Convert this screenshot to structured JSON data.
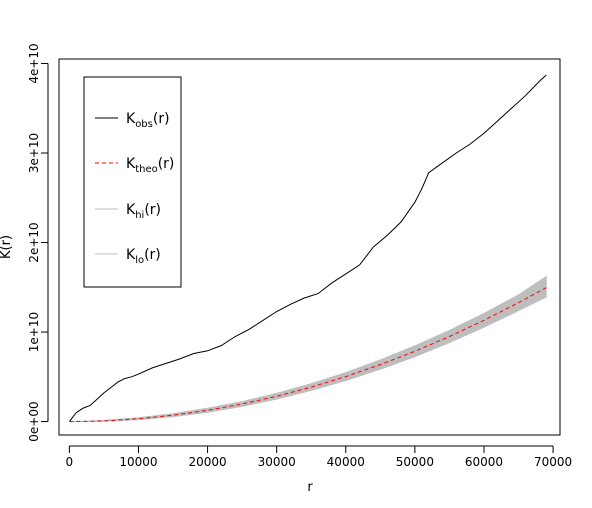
{
  "chart_data": {
    "type": "line",
    "title": "",
    "xlabel": "r",
    "ylabel": "K(r)",
    "xlim": [
      -1500,
      71000
    ],
    "ylim": [
      -1500000000,
      40500000000
    ],
    "x_ticks": [
      0,
      10000,
      20000,
      30000,
      40000,
      50000,
      60000,
      70000
    ],
    "x_tick_labels": [
      "0",
      "10000",
      "20000",
      "30000",
      "40000",
      "50000",
      "60000",
      "70000"
    ],
    "y_ticks": [
      0,
      10000000000,
      20000000000,
      30000000000,
      40000000000
    ],
    "y_tick_labels": [
      "0e+00",
      "1e+10",
      "2e+10",
      "3e+10",
      "4e+10"
    ],
    "grid": false,
    "legend_position": "top-left",
    "legend": [
      {
        "base": "K",
        "sub": "obs",
        "suffix": "(r)",
        "color": "#000000",
        "style": "solid"
      },
      {
        "base": "K",
        "sub": "theo",
        "suffix": "(r)",
        "color": "#ff0000",
        "style": "dashed"
      },
      {
        "base": "K",
        "sub": "hi",
        "suffix": "(r)",
        "color": "#bebebe",
        "style": "solid"
      },
      {
        "base": "K",
        "sub": "lo",
        "suffix": "(r)",
        "color": "#bebebe",
        "style": "solid"
      }
    ],
    "series": [
      {
        "name": "obs",
        "color": "#000000",
        "x": [
          0,
          500,
          1000,
          2000,
          3000,
          4000,
          5000,
          6000,
          7000,
          8000,
          9000,
          10000,
          12000,
          14000,
          16000,
          18000,
          20000,
          22000,
          24000,
          26000,
          28000,
          30000,
          32000,
          34000,
          36000,
          38000,
          40000,
          42000,
          44000,
          46000,
          48000,
          50000,
          51000,
          52000,
          54000,
          56000,
          58000,
          60000,
          62000,
          64000,
          66000,
          68000,
          69000
        ],
        "y": [
          0,
          500000000,
          1000000000,
          1500000000,
          1800000000,
          2500000000,
          3200000000,
          3800000000,
          4400000000,
          4800000000,
          5000000000,
          5300000000,
          6000000000,
          6500000000,
          7000000000,
          7600000000,
          7900000000,
          8500000000,
          9500000000,
          10300000000,
          11300000000,
          12300000000,
          13100000000,
          13800000000,
          14300000000,
          15500000000,
          16500000000,
          17500000000,
          19500000000,
          20800000000,
          22300000000,
          24500000000,
          26000000000,
          27800000000,
          28900000000,
          30000000000,
          31000000000,
          32200000000,
          33600000000,
          35000000000,
          36400000000,
          38000000000,
          38700000000
        ]
      },
      {
        "name": "theo",
        "color": "#ff0000",
        "x": [
          0,
          2000,
          5000,
          10000,
          15000,
          20000,
          25000,
          30000,
          35000,
          40000,
          45000,
          50000,
          55000,
          60000,
          65000,
          69000
        ],
        "y": [
          0,
          12600000,
          78500000,
          314000000,
          707000000,
          1257000000,
          1963000000,
          2827000000,
          3848000000,
          5027000000,
          6362000000,
          7854000000,
          9503000000,
          11310000000,
          13273000000,
          14957000000
        ]
      },
      {
        "name": "hi",
        "color": "#bebebe",
        "x": [
          0,
          2000,
          5000,
          10000,
          15000,
          20000,
          25000,
          30000,
          35000,
          40000,
          45000,
          50000,
          55000,
          60000,
          65000,
          69000
        ],
        "y": [
          0,
          30000000,
          130000000,
          430000000,
          880000000,
          1480000000,
          2230000000,
          3150000000,
          4230000000,
          5470000000,
          6880000000,
          8450000000,
          10180000000,
          12080000000,
          14150000000,
          16200000000
        ]
      },
      {
        "name": "lo",
        "color": "#bebebe",
        "x": [
          0,
          2000,
          5000,
          10000,
          15000,
          20000,
          25000,
          30000,
          35000,
          40000,
          45000,
          50000,
          55000,
          60000,
          65000,
          69000
        ],
        "y": [
          0,
          5000000,
          40000000,
          220000000,
          550000000,
          1050000000,
          1700000000,
          2520000000,
          3480000000,
          4590000000,
          5850000000,
          7260000000,
          8820000000,
          10540000000,
          12400000000,
          13900000000
        ]
      }
    ]
  }
}
